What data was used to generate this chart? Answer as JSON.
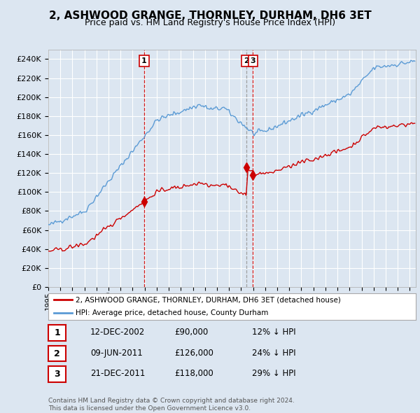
{
  "title": "2, ASHWOOD GRANGE, THORNLEY, DURHAM, DH6 3ET",
  "subtitle": "Price paid vs. HM Land Registry's House Price Index (HPI)",
  "title_fontsize": 11,
  "subtitle_fontsize": 9,
  "background_color": "#dce6f1",
  "plot_bg_color": "#dce6f1",
  "ylim": [
    0,
    250000
  ],
  "yticks": [
    0,
    20000,
    40000,
    60000,
    80000,
    100000,
    120000,
    140000,
    160000,
    180000,
    200000,
    220000,
    240000
  ],
  "legend_label_red": "2, ASHWOOD GRANGE, THORNLEY, DURHAM, DH6 3ET (detached house)",
  "legend_label_blue": "HPI: Average price, detached house, County Durham",
  "sale_times": [
    2002.958,
    2011.44,
    2011.97
  ],
  "sale_prices": [
    90000,
    126000,
    118000
  ],
  "sale_labels": [
    "1",
    "2",
    "3"
  ],
  "sale_line_styles": [
    "red_dashed",
    "grey_dashed",
    "grey_dashed"
  ],
  "table_rows": [
    [
      "1",
      "12-DEC-2002",
      "£90,000",
      "12% ↓ HPI"
    ],
    [
      "2",
      "09-JUN-2011",
      "£126,000",
      "24% ↓ HPI"
    ],
    [
      "3",
      "21-DEC-2011",
      "£118,000",
      "29% ↓ HPI"
    ]
  ],
  "footnote": "Contains HM Land Registry data © Crown copyright and database right 2024.\nThis data is licensed under the Open Government Licence v3.0.",
  "red_color": "#cc0000",
  "blue_color": "#5b9bd5",
  "grey_dashed_color": "#aaaaaa"
}
